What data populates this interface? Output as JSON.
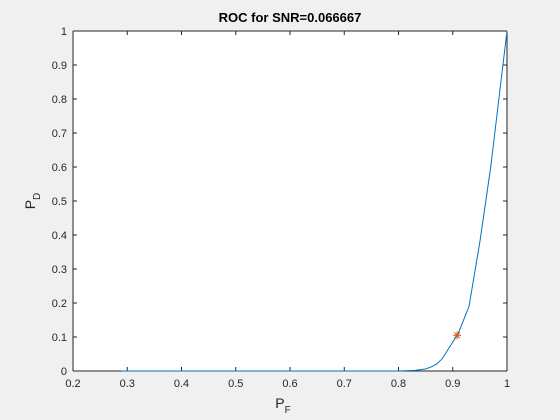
{
  "chart_data": {
    "type": "line",
    "title": "ROC for SNR=0.066667",
    "xlabel": {
      "main": "P",
      "sub": "F"
    },
    "ylabel": {
      "main": "P",
      "sub": "D"
    },
    "xlim": [
      0.2,
      1
    ],
    "ylim": [
      0,
      1
    ],
    "xticks": [
      0.2,
      0.3,
      0.4,
      0.5,
      0.6,
      0.7,
      0.8,
      0.9,
      1
    ],
    "yticks": [
      0,
      0.1,
      0.2,
      0.3,
      0.4,
      0.5,
      0.6,
      0.7,
      0.8,
      0.9,
      1
    ],
    "xtick_labels": [
      "0.2",
      "0.3",
      "0.4",
      "0.5",
      "0.6",
      "0.7",
      "0.8",
      "0.9",
      "1"
    ],
    "ytick_labels": [
      "0",
      "0.1",
      "0.2",
      "0.3",
      "0.4",
      "0.5",
      "0.6",
      "0.7",
      "0.8",
      "0.9",
      "1"
    ],
    "grid": false,
    "series": [
      {
        "color": "#0072BD",
        "x": [
          0.29,
          0.35,
          0.4,
          0.45,
          0.5,
          0.55,
          0.6,
          0.65,
          0.7,
          0.75,
          0.8,
          0.83,
          0.85,
          0.86,
          0.87,
          0.88,
          0.89,
          0.9,
          0.91,
          0.93,
          0.95,
          0.97,
          0.985,
          1.0
        ],
        "y": [
          0.0,
          0.0,
          0.0,
          0.0,
          0.0,
          0.0,
          0.0,
          0.0,
          0.0,
          0.0,
          0.0,
          0.002,
          0.006,
          0.012,
          0.02,
          0.035,
          0.06,
          0.085,
          0.11,
          0.19,
          0.38,
          0.6,
          0.8,
          1.0
        ]
      }
    ],
    "marker": {
      "x": 0.908,
      "y": 0.105,
      "symbol": "*",
      "color": "#D95319"
    }
  }
}
